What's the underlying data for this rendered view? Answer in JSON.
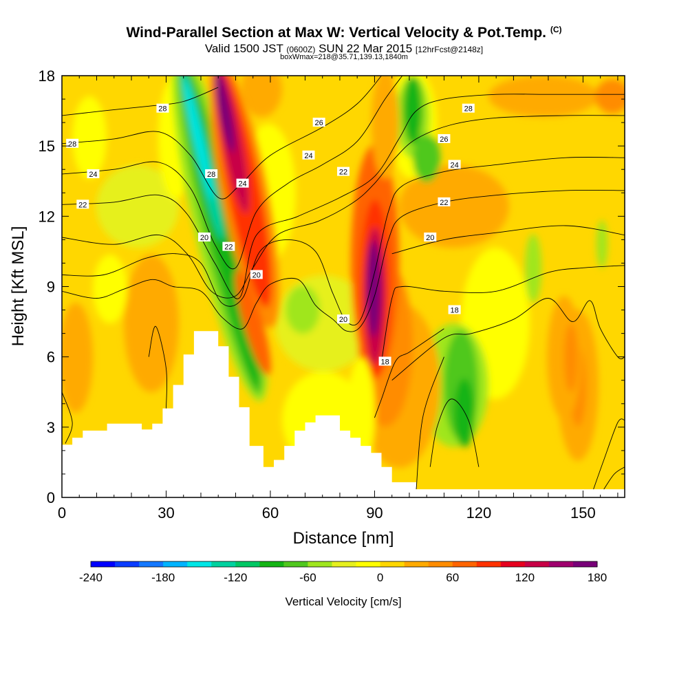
{
  "header": {
    "title": "Wind-Parallel Section at Max W: Vertical Velocity & Pot.Temp.",
    "copyright": "(C)",
    "subtitle_a": "Valid 1500 JST",
    "subtitle_b": "(0600Z)",
    "subtitle_c": "SUN 22 Mar 2015",
    "subtitle_d": "[12hrFcst@2148z]",
    "subtitle2": "boxWmax=218@35.71,139.13,1840m"
  },
  "chart_data": {
    "type": "heatmap",
    "xlabel": "Distance [nm]",
    "ylabel": "Height [Kft MSL]",
    "xlim": [
      0,
      162
    ],
    "ylim": [
      0,
      18
    ],
    "xticks": [
      0,
      30,
      60,
      90,
      120,
      150
    ],
    "yticks": [
      0,
      3,
      6,
      9,
      12,
      15,
      18
    ],
    "colorbar": {
      "label": "Vertical Velocity [cm/s]",
      "ticks": [
        -240,
        -180,
        -120,
        -60,
        0,
        60,
        120,
        180
      ],
      "colors": [
        "#0000ff",
        "#0a3cff",
        "#1478ff",
        "#00b4ff",
        "#00e6e6",
        "#00d2a0",
        "#00c864",
        "#14b414",
        "#50c81e",
        "#a0e61e",
        "#e6f01e",
        "#ffff00",
        "#ffd700",
        "#ffaa00",
        "#ff8c00",
        "#ff6400",
        "#ff3200",
        "#e6001e",
        "#c80046",
        "#a0006e",
        "#780078"
      ]
    },
    "terrain": [
      {
        "x": 0,
        "y": 2.25
      },
      {
        "x": 3,
        "y": 2.25
      },
      {
        "x": 3,
        "y": 2.55
      },
      {
        "x": 6,
        "y": 2.55
      },
      {
        "x": 6,
        "y": 2.85
      },
      {
        "x": 13,
        "y": 2.85
      },
      {
        "x": 13,
        "y": 3.15
      },
      {
        "x": 23,
        "y": 3.15
      },
      {
        "x": 23,
        "y": 2.9
      },
      {
        "x": 26,
        "y": 2.9
      },
      {
        "x": 26,
        "y": 3.15
      },
      {
        "x": 29,
        "y": 3.15
      },
      {
        "x": 29,
        "y": 3.8
      },
      {
        "x": 32,
        "y": 3.8
      },
      {
        "x": 32,
        "y": 4.8
      },
      {
        "x": 35,
        "y": 4.8
      },
      {
        "x": 35,
        "y": 6.1
      },
      {
        "x": 38,
        "y": 6.1
      },
      {
        "x": 38,
        "y": 7.1
      },
      {
        "x": 45,
        "y": 7.1
      },
      {
        "x": 45,
        "y": 6.45
      },
      {
        "x": 48,
        "y": 6.45
      },
      {
        "x": 48,
        "y": 5.15
      },
      {
        "x": 51,
        "y": 5.15
      },
      {
        "x": 51,
        "y": 3.85
      },
      {
        "x": 54,
        "y": 3.85
      },
      {
        "x": 54,
        "y": 2.2
      },
      {
        "x": 58,
        "y": 2.2
      },
      {
        "x": 58,
        "y": 1.3
      },
      {
        "x": 61,
        "y": 1.3
      },
      {
        "x": 61,
        "y": 1.6
      },
      {
        "x": 64,
        "y": 1.6
      },
      {
        "x": 64,
        "y": 2.2
      },
      {
        "x": 67,
        "y": 2.2
      },
      {
        "x": 67,
        "y": 2.85
      },
      {
        "x": 70,
        "y": 2.85
      },
      {
        "x": 70,
        "y": 3.2
      },
      {
        "x": 73,
        "y": 3.2
      },
      {
        "x": 73,
        "y": 3.5
      },
      {
        "x": 80,
        "y": 3.5
      },
      {
        "x": 80,
        "y": 2.85
      },
      {
        "x": 83,
        "y": 2.85
      },
      {
        "x": 83,
        "y": 2.55
      },
      {
        "x": 86,
        "y": 2.55
      },
      {
        "x": 86,
        "y": 2.2
      },
      {
        "x": 89,
        "y": 2.2
      },
      {
        "x": 89,
        "y": 1.9
      },
      {
        "x": 92,
        "y": 1.9
      },
      {
        "x": 92,
        "y": 1.3
      },
      {
        "x": 95,
        "y": 1.3
      },
      {
        "x": 95,
        "y": 0.65
      },
      {
        "x": 98,
        "y": 0.65
      },
      {
        "x": 98,
        "y": 0.65
      },
      {
        "x": 102,
        "y": 0.65
      },
      {
        "x": 102,
        "y": 0.35
      },
      {
        "x": 162,
        "y": 0.35
      }
    ],
    "contours": [
      {
        "label": "28",
        "pts": [
          [
            0,
            16.3
          ],
          [
            12,
            16.5
          ],
          [
            25,
            16.7
          ],
          [
            35,
            16.9
          ],
          [
            45,
            17.5
          ]
        ]
      },
      {
        "label": "26",
        "pts": [
          [
            0,
            15.1
          ],
          [
            15,
            15.3
          ],
          [
            28,
            15.6
          ],
          [
            37,
            14.6
          ],
          [
            45,
            12.8
          ],
          [
            51,
            13.3
          ],
          [
            60,
            14.6
          ],
          [
            75,
            15.8
          ],
          [
            85,
            16.8
          ],
          [
            92,
            18
          ]
        ]
      },
      {
        "label": "24",
        "pts": [
          [
            0,
            13.8
          ],
          [
            15,
            14.0
          ],
          [
            28,
            14.3
          ],
          [
            37,
            13.2
          ],
          [
            44,
            10.8
          ],
          [
            50,
            9.8
          ],
          [
            56,
            12.2
          ],
          [
            65,
            13.4
          ],
          [
            75,
            14.2
          ],
          [
            85,
            15.2
          ],
          [
            93,
            17.0
          ],
          [
            98,
            18
          ]
        ]
      },
      {
        "label": "22",
        "pts": [
          [
            0,
            12.5
          ],
          [
            15,
            12.6
          ],
          [
            28,
            12.9
          ],
          [
            36,
            12.1
          ],
          [
            44,
            10.0
          ],
          [
            51,
            8.5
          ],
          [
            56,
            11.2
          ],
          [
            68,
            12.0
          ],
          [
            80,
            12.8
          ],
          [
            90,
            13.7
          ],
          [
            97,
            15.3
          ],
          [
            102,
            16.5
          ],
          [
            110,
            17.0
          ],
          [
            125,
            17.2
          ],
          [
            140,
            17.2
          ],
          [
            162,
            17.2
          ]
        ]
      },
      {
        "label": "20",
        "pts": [
          [
            0,
            11.1
          ],
          [
            15,
            10.8
          ],
          [
            28,
            11.2
          ],
          [
            36,
            10.4
          ],
          [
            43,
            8.8
          ],
          [
            50,
            8.6
          ],
          [
            55,
            9.8
          ],
          [
            62,
            11.2
          ],
          [
            74,
            11.8
          ],
          [
            84,
            12.6
          ],
          [
            90,
            13.4
          ],
          [
            96,
            14.5
          ],
          [
            102,
            15.3
          ],
          [
            112,
            15.9
          ],
          [
            125,
            16.2
          ],
          [
            145,
            16.3
          ],
          [
            162,
            16.3
          ]
        ]
      },
      {
        "label": "20",
        "pts": [
          [
            0,
            9.5
          ],
          [
            12,
            9.5
          ],
          [
            24,
            10.2
          ],
          [
            33,
            10.4
          ],
          [
            40,
            10.0
          ],
          [
            46,
            8.3
          ],
          [
            52,
            8.5
          ],
          [
            57,
            10.5
          ],
          [
            65,
            11.0
          ],
          [
            73,
            10.5
          ],
          [
            78,
            8.7
          ],
          [
            82,
            7.5
          ],
          [
            86,
            7.6
          ],
          [
            90,
            9.6
          ],
          [
            94,
            12.2
          ],
          [
            98,
            13.3
          ],
          [
            110,
            13.9
          ],
          [
            125,
            14.2
          ],
          [
            145,
            14.5
          ],
          [
            162,
            14.5
          ]
        ]
      },
      {
        "label": "20",
        "pts": [
          [
            0,
            8.8
          ],
          [
            10,
            8.5
          ],
          [
            18,
            8.9
          ],
          [
            26,
            9.3
          ],
          [
            32,
            9.0
          ],
          [
            40,
            8.8
          ],
          [
            46,
            7.7
          ],
          [
            52,
            7.2
          ],
          [
            56,
            8.3
          ],
          [
            60,
            9.1
          ],
          [
            68,
            9.3
          ],
          [
            73,
            8.2
          ],
          [
            78,
            7.6
          ],
          [
            82,
            7.1
          ],
          [
            86,
            7.3
          ],
          [
            90,
            8.6
          ],
          [
            94,
            11.0
          ],
          [
            98,
            12.0
          ],
          [
            110,
            12.6
          ],
          [
            125,
            12.9
          ],
          [
            145,
            13.1
          ],
          [
            162,
            13.1
          ]
        ]
      },
      {
        "label": "20",
        "pts": [
          [
            95,
            10.4
          ],
          [
            110,
            11.0
          ],
          [
            125,
            11.3
          ],
          [
            145,
            11.6
          ],
          [
            162,
            11.2
          ]
        ]
      },
      {
        "label": "18",
        "pts": [
          [
            92,
            5.8
          ],
          [
            95,
            8.5
          ],
          [
            98,
            9.0
          ],
          [
            110,
            8.8
          ],
          [
            125,
            8.8
          ],
          [
            140,
            9.6
          ],
          [
            150,
            9.8
          ],
          [
            162,
            9.9
          ]
        ]
      },
      {
        "label": "18",
        "pts": [
          [
            95,
            5.0
          ],
          [
            110,
            6.8
          ],
          [
            118,
            7.0
          ],
          [
            130,
            7.6
          ],
          [
            140,
            8.5
          ],
          [
            147,
            7.5
          ],
          [
            152,
            8.4
          ],
          [
            155,
            7.2
          ],
          [
            160,
            6.0
          ],
          [
            162,
            6.0
          ]
        ]
      },
      {
        "label": "",
        "pts": [
          [
            90,
            3.4
          ],
          [
            92,
            4.2
          ],
          [
            96,
            5.8
          ],
          [
            100,
            6.2
          ],
          [
            106,
            6.8
          ],
          [
            110,
            7.2
          ]
        ]
      },
      {
        "label": "",
        "pts": [
          [
            106,
            1.3
          ],
          [
            108,
            3.0
          ],
          [
            112,
            4.2
          ],
          [
            117,
            3.3
          ],
          [
            120,
            1.3
          ]
        ]
      },
      {
        "label": "",
        "pts": [
          [
            102,
            0.35
          ],
          [
            104,
            3.5
          ],
          [
            110,
            6.0
          ]
        ]
      },
      {
        "label": "",
        "pts": [
          [
            25,
            6.0
          ],
          [
            27,
            7.3
          ],
          [
            30,
            5.5
          ],
          [
            30,
            3.8
          ]
        ]
      },
      {
        "label": "",
        "pts": [
          [
            0,
            4.5
          ],
          [
            3,
            3.2
          ],
          [
            1,
            2.3
          ]
        ]
      },
      {
        "label": "",
        "pts": [
          [
            153,
            0.35
          ],
          [
            156,
            1.6
          ],
          [
            160,
            3.2
          ],
          [
            162,
            3.3
          ]
        ]
      },
      {
        "label": "",
        "pts": [
          [
            156,
            0.35
          ],
          [
            159,
            1.0
          ],
          [
            162,
            1.3
          ]
        ]
      }
    ],
    "contour_labels": [
      {
        "text": "28",
        "x": 29,
        "y": 16.6
      },
      {
        "text": "28",
        "x": 3,
        "y": 15.1
      },
      {
        "text": "24",
        "x": 9,
        "y": 13.8
      },
      {
        "text": "22",
        "x": 6,
        "y": 12.5
      },
      {
        "text": "28",
        "x": 43,
        "y": 13.8
      },
      {
        "text": "24",
        "x": 52,
        "y": 13.4
      },
      {
        "text": "22",
        "x": 48,
        "y": 10.7
      },
      {
        "text": "20",
        "x": 41,
        "y": 11.1
      },
      {
        "text": "20",
        "x": 56,
        "y": 9.5
      },
      {
        "text": "26",
        "x": 74,
        "y": 16.0
      },
      {
        "text": "24",
        "x": 71,
        "y": 14.6
      },
      {
        "text": "22",
        "x": 81,
        "y": 13.9
      },
      {
        "text": "20",
        "x": 81,
        "y": 7.6
      },
      {
        "text": "18",
        "x": 93,
        "y": 5.8
      },
      {
        "text": "28",
        "x": 117,
        "y": 16.6
      },
      {
        "text": "26",
        "x": 110,
        "y": 15.3
      },
      {
        "text": "24",
        "x": 113,
        "y": 14.2
      },
      {
        "text": "22",
        "x": 110,
        "y": 12.6
      },
      {
        "text": "20",
        "x": 106,
        "y": 11.1
      },
      {
        "text": "18",
        "x": 113,
        "y": 8.0
      }
    ]
  }
}
